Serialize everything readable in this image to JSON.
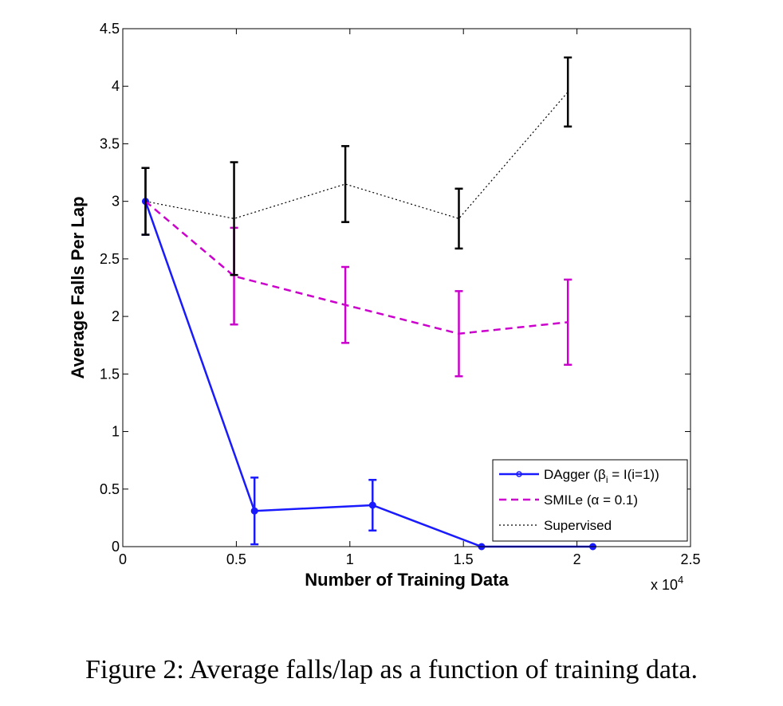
{
  "caption": "Figure 2: Average falls/lap as a function of training data.",
  "chart_data": {
    "type": "line",
    "xlabel": "Number of Training Data",
    "ylabel": "Average Falls Per Lap",
    "x_multiplier_label": "x 10",
    "x_multiplier_exponent": "4",
    "xlim": [
      0,
      25000
    ],
    "ylim": [
      0,
      4.5
    ],
    "xticks": [
      0,
      5000,
      10000,
      15000,
      20000,
      25000
    ],
    "xtick_labels": [
      "0",
      "0.5",
      "1",
      "1.5",
      "2",
      "2.5"
    ],
    "yticks": [
      0,
      0.5,
      1,
      1.5,
      2,
      2.5,
      3,
      3.5,
      4,
      4.5
    ],
    "ytick_labels": [
      "0",
      "0.5",
      "1",
      "1.5",
      "2",
      "2.5",
      "3",
      "3.5",
      "4",
      "4.5"
    ],
    "legend_position": "bottom-right",
    "series": [
      {
        "name": "DAgger (β",
        "name_sub": "i",
        "name_rest": " = I(i=1))",
        "color": "#1a1aff",
        "style": "solid",
        "marker": "circle",
        "x": [
          1000,
          5800,
          11000,
          15800,
          20700
        ],
        "y": [
          3.0,
          0.31,
          0.36,
          0.0,
          0.0
        ],
        "err": [
          0.29,
          0.29,
          0.22,
          null,
          null
        ]
      },
      {
        "name": "SMILe (α = 0.1)",
        "color": "#cc00cc",
        "style": "dashed",
        "marker": "none",
        "x": [
          1000,
          4900,
          9800,
          14800,
          19600
        ],
        "y": [
          3.0,
          2.35,
          2.1,
          1.85,
          1.95
        ],
        "err": [
          null,
          0.42,
          0.33,
          0.37,
          0.37
        ]
      },
      {
        "name": "Supervised",
        "color": "#000000",
        "style": "dotted",
        "marker": "none",
        "x": [
          1000,
          4900,
          9800,
          14800,
          19600
        ],
        "y": [
          3.0,
          2.85,
          3.15,
          2.85,
          3.95
        ],
        "err": [
          0.29,
          0.49,
          0.33,
          0.26,
          0.3
        ]
      }
    ]
  }
}
